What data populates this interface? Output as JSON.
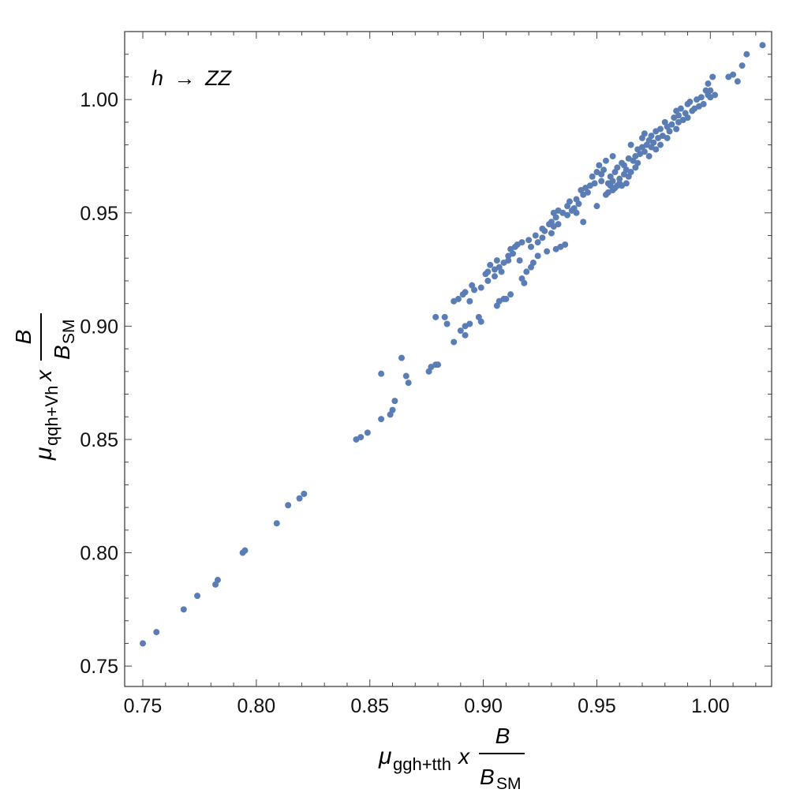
{
  "chart_data": {
    "type": "scatter",
    "title": "",
    "annotation": {
      "var": "h",
      "arrow": "→",
      "rest": "ZZ"
    },
    "xlabel": {
      "mu": "μ",
      "sub": "ggh+tth",
      "times": "x",
      "num": "B",
      "den": "B",
      "den_sub": "SM"
    },
    "ylabel": {
      "mu": "μ",
      "sub": "qqh+Vh",
      "times": "x",
      "num": "B",
      "den": "B",
      "den_sub": "SM"
    },
    "xlim": [
      0.742,
      1.027
    ],
    "ylim": [
      0.741,
      1.03
    ],
    "xticks": [
      "0.75",
      "0.80",
      "0.85",
      "0.90",
      "0.95",
      "1.00"
    ],
    "yticks": [
      "0.75",
      "0.80",
      "0.85",
      "0.90",
      "0.95",
      "1.00"
    ],
    "grid": false,
    "marker_color": "#5b7db6",
    "points": [
      [
        0.75,
        0.76
      ],
      [
        0.756,
        0.765
      ],
      [
        0.768,
        0.775
      ],
      [
        0.774,
        0.781
      ],
      [
        0.782,
        0.786
      ],
      [
        0.783,
        0.788
      ],
      [
        0.794,
        0.8
      ],
      [
        0.795,
        0.801
      ],
      [
        0.809,
        0.813
      ],
      [
        0.814,
        0.821
      ],
      [
        0.819,
        0.824
      ],
      [
        0.821,
        0.826
      ],
      [
        0.844,
        0.85
      ],
      [
        0.846,
        0.851
      ],
      [
        0.849,
        0.853
      ],
      [
        0.855,
        0.879
      ],
      [
        0.855,
        0.859
      ],
      [
        0.859,
        0.861
      ],
      [
        0.86,
        0.863
      ],
      [
        0.861,
        0.867
      ],
      [
        0.864,
        0.886
      ],
      [
        0.866,
        0.878
      ],
      [
        0.867,
        0.875
      ],
      [
        0.876,
        0.88
      ],
      [
        0.877,
        0.882
      ],
      [
        0.879,
        0.883
      ],
      [
        0.88,
        0.883
      ],
      [
        0.879,
        0.904
      ],
      [
        0.883,
        0.904
      ],
      [
        0.884,
        0.901
      ],
      [
        0.887,
        0.893
      ],
      [
        0.887,
        0.911
      ],
      [
        0.889,
        0.912
      ],
      [
        0.89,
        0.898
      ],
      [
        0.891,
        0.914
      ],
      [
        0.892,
        0.9
      ],
      [
        0.892,
        0.896
      ],
      [
        0.892,
        0.915
      ],
      [
        0.894,
        0.911
      ],
      [
        0.894,
        0.901
      ],
      [
        0.895,
        0.918
      ],
      [
        0.896,
        0.916
      ],
      [
        0.898,
        0.904
      ],
      [
        0.899,
        0.902
      ],
      [
        0.899,
        0.917
      ],
      [
        0.901,
        0.923
      ],
      [
        0.902,
        0.924
      ],
      [
        0.902,
        0.92
      ],
      [
        0.903,
        0.927
      ],
      [
        0.905,
        0.922
      ],
      [
        0.905,
        0.925
      ],
      [
        0.906,
        0.929
      ],
      [
        0.906,
        0.909
      ],
      [
        0.907,
        0.911
      ],
      [
        0.907,
        0.926
      ],
      [
        0.908,
        0.924
      ],
      [
        0.909,
        0.912
      ],
      [
        0.909,
        0.928
      ],
      [
        0.91,
        0.912
      ],
      [
        0.911,
        0.931
      ],
      [
        0.911,
        0.929
      ],
      [
        0.912,
        0.934
      ],
      [
        0.912,
        0.914
      ],
      [
        0.913,
        0.932
      ],
      [
        0.914,
        0.935
      ],
      [
        0.915,
        0.936
      ],
      [
        0.916,
        0.929
      ],
      [
        0.917,
        0.937
      ],
      [
        0.917,
        0.921
      ],
      [
        0.918,
        0.919
      ],
      [
        0.919,
        0.924
      ],
      [
        0.92,
        0.938
      ],
      [
        0.921,
        0.926
      ],
      [
        0.921,
        0.935
      ],
      [
        0.922,
        0.928
      ],
      [
        0.923,
        0.94
      ],
      [
        0.924,
        0.937
      ],
      [
        0.924,
        0.931
      ],
      [
        0.926,
        0.939
      ],
      [
        0.926,
        0.943
      ],
      [
        0.927,
        0.942
      ],
      [
        0.928,
        0.933
      ],
      [
        0.929,
        0.945
      ],
      [
        0.93,
        0.941
      ],
      [
        0.93,
        0.946
      ],
      [
        0.931,
        0.944
      ],
      [
        0.931,
        0.95
      ],
      [
        0.932,
        0.934
      ],
      [
        0.932,
        0.948
      ],
      [
        0.933,
        0.951
      ],
      [
        0.933,
        0.945
      ],
      [
        0.934,
        0.935
      ],
      [
        0.935,
        0.95
      ],
      [
        0.936,
        0.936
      ],
      [
        0.937,
        0.949
      ],
      [
        0.937,
        0.953
      ],
      [
        0.938,
        0.955
      ],
      [
        0.939,
        0.951
      ],
      [
        0.94,
        0.952
      ],
      [
        0.941,
        0.95
      ],
      [
        0.941,
        0.956
      ],
      [
        0.942,
        0.954
      ],
      [
        0.943,
        0.96
      ],
      [
        0.944,
        0.958
      ],
      [
        0.944,
        0.946
      ],
      [
        0.945,
        0.961
      ],
      [
        0.946,
        0.959
      ],
      [
        0.947,
        0.962
      ],
      [
        0.948,
        0.966
      ],
      [
        0.949,
        0.963
      ],
      [
        0.95,
        0.953
      ],
      [
        0.95,
        0.968
      ],
      [
        0.951,
        0.971
      ],
      [
        0.952,
        0.964
      ],
      [
        0.952,
        0.967
      ],
      [
        0.953,
        0.969
      ],
      [
        0.954,
        0.973
      ],
      [
        0.954,
        0.958
      ],
      [
        0.955,
        0.963
      ],
      [
        0.955,
        0.959
      ],
      [
        0.956,
        0.962
      ],
      [
        0.956,
        0.966
      ],
      [
        0.957,
        0.96
      ],
      [
        0.957,
        0.964
      ],
      [
        0.957,
        0.975
      ],
      [
        0.958,
        0.968
      ],
      [
        0.958,
        0.961
      ],
      [
        0.959,
        0.962
      ],
      [
        0.959,
        0.97
      ],
      [
        0.96,
        0.963
      ],
      [
        0.96,
        0.965
      ],
      [
        0.961,
        0.972
      ],
      [
        0.961,
        0.962
      ],
      [
        0.962,
        0.967
      ],
      [
        0.962,
        0.971
      ],
      [
        0.963,
        0.963
      ],
      [
        0.963,
        0.969
      ],
      [
        0.964,
        0.974
      ],
      [
        0.964,
        0.966
      ],
      [
        0.965,
        0.968
      ],
      [
        0.965,
        0.98
      ],
      [
        0.966,
        0.973
      ],
      [
        0.967,
        0.975
      ],
      [
        0.967,
        0.97
      ],
      [
        0.968,
        0.978
      ],
      [
        0.968,
        0.972
      ],
      [
        0.969,
        0.976
      ],
      [
        0.97,
        0.983
      ],
      [
        0.97,
        0.979
      ],
      [
        0.971,
        0.977
      ],
      [
        0.971,
        0.985
      ],
      [
        0.972,
        0.98
      ],
      [
        0.973,
        0.982
      ],
      [
        0.973,
        0.975
      ],
      [
        0.974,
        0.984
      ],
      [
        0.974,
        0.979
      ],
      [
        0.975,
        0.981
      ],
      [
        0.976,
        0.986
      ],
      [
        0.976,
        0.978
      ],
      [
        0.977,
        0.983
      ],
      [
        0.978,
        0.98
      ],
      [
        0.978,
        0.987
      ],
      [
        0.979,
        0.984
      ],
      [
        0.98,
        0.99
      ],
      [
        0.981,
        0.988
      ],
      [
        0.981,
        0.983
      ],
      [
        0.982,
        0.986
      ],
      [
        0.983,
        0.989
      ],
      [
        0.984,
        0.992
      ],
      [
        0.985,
        0.987
      ],
      [
        0.985,
        0.995
      ],
      [
        0.986,
        0.993
      ],
      [
        0.986,
        0.99
      ],
      [
        0.987,
        0.996
      ],
      [
        0.988,
        0.991
      ],
      [
        0.989,
        0.994
      ],
      [
        0.99,
        0.998
      ],
      [
        0.99,
        0.992
      ],
      [
        0.991,
        0.999
      ],
      [
        0.992,
        0.995
      ],
      [
        0.993,
        0.996
      ],
      [
        0.994,
        1.0
      ],
      [
        0.995,
        0.997
      ],
      [
        0.996,
        1.001
      ],
      [
        0.997,
        0.998
      ],
      [
        0.998,
        1.004
      ],
      [
        0.999,
        1.007
      ],
      [
        0.999,
        1.002
      ],
      [
        1.0,
        1.004
      ],
      [
        1.0,
        1.001
      ],
      [
        1.001,
        1.01
      ],
      [
        1.002,
        1.002
      ],
      [
        1.008,
        1.01
      ],
      [
        1.01,
        1.011
      ],
      [
        1.012,
        1.008
      ],
      [
        1.014,
        1.015
      ],
      [
        1.016,
        1.02
      ],
      [
        1.023,
        1.024
      ]
    ]
  }
}
